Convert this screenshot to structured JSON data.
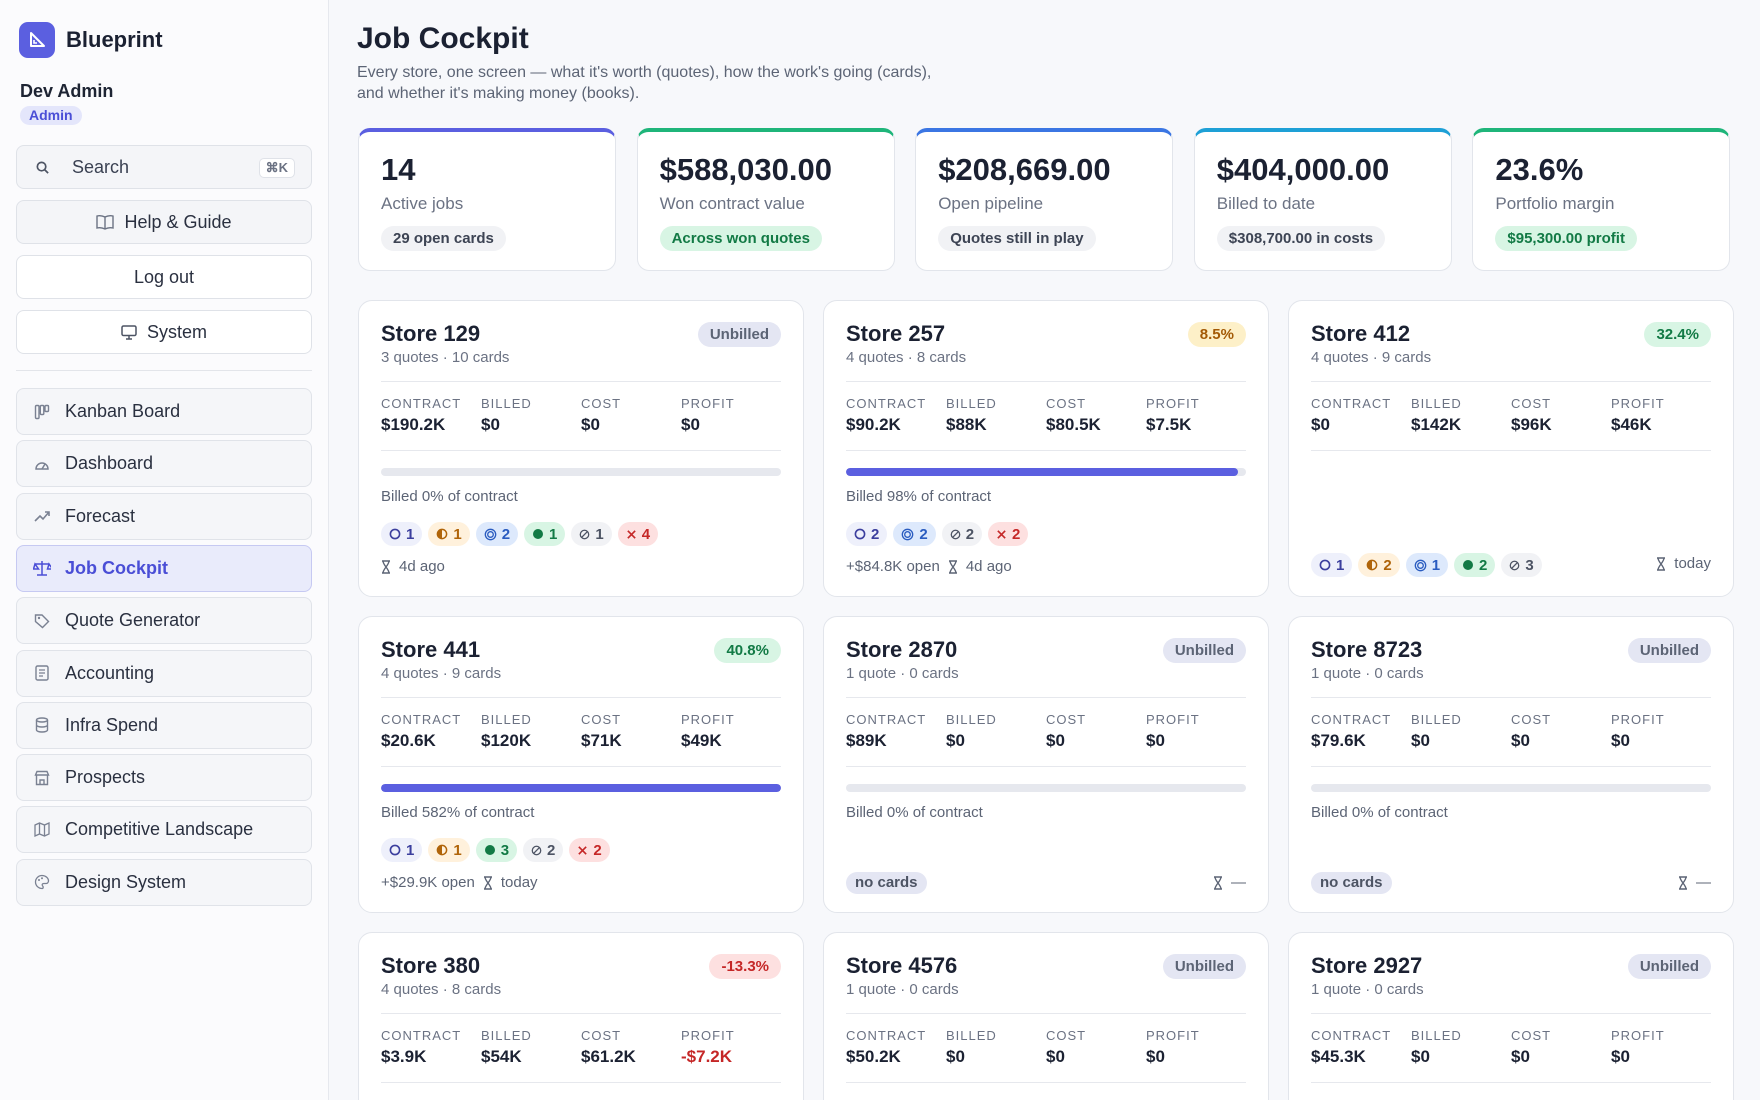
{
  "app": {
    "name": "Blueprint"
  },
  "user": {
    "name": "Dev Admin",
    "role": "Admin"
  },
  "sidebar": {
    "search_label": "Search",
    "search_shortcut": "⌘K",
    "help_label": "Help & Guide",
    "logout_label": "Log out",
    "system_label": "System",
    "nav": [
      {
        "label": "Kanban Board",
        "icon": "kanban-icon"
      },
      {
        "label": "Dashboard",
        "icon": "gauge-icon"
      },
      {
        "label": "Forecast",
        "icon": "trend-icon"
      },
      {
        "label": "Job Cockpit",
        "icon": "scale-icon",
        "active": true
      },
      {
        "label": "Quote Generator",
        "icon": "tag-icon"
      },
      {
        "label": "Accounting",
        "icon": "ledger-icon"
      },
      {
        "label": "Infra Spend",
        "icon": "database-icon"
      },
      {
        "label": "Prospects",
        "icon": "store-icon"
      },
      {
        "label": "Competitive Landscape",
        "icon": "map-icon"
      },
      {
        "label": "Design System",
        "icon": "palette-icon"
      }
    ]
  },
  "header": {
    "title": "Job Cockpit",
    "subtitle": "Every store, one screen — what it's worth (quotes), how the work's going (cards), and whether it's making money (books)."
  },
  "kpis": [
    {
      "value": "14",
      "label": "Active jobs",
      "chip": "29 open cards",
      "accent": "#5b5fe0",
      "chip_style": "neutral"
    },
    {
      "value": "$588,030.00",
      "label": "Won contract value",
      "chip": "Across won quotes",
      "accent": "#1fb57a",
      "chip_style": "green"
    },
    {
      "value": "$208,669.00",
      "label": "Open pipeline",
      "chip": "Quotes still in play",
      "accent": "#3b76e3",
      "chip_style": "neutral"
    },
    {
      "value": "$404,000.00",
      "label": "Billed to date",
      "chip": "$308,700.00 in costs",
      "accent": "#1ea0d6",
      "chip_style": "neutral"
    },
    {
      "value": "23.6%",
      "label": "Portfolio margin",
      "chip": "$95,300.00 profit",
      "accent": "#1fb57a",
      "chip_style": "green"
    }
  ],
  "metric_labels": {
    "contract": "CONTRACT",
    "billed": "BILLED",
    "cost": "COST",
    "profit": "PROFIT"
  },
  "no_cards_label": "no cards",
  "stores": [
    {
      "name": "Store 129",
      "sub": "3 quotes · 10 cards",
      "badge": "Unbilled",
      "badge_style": "neutral",
      "contract": "$190.2K",
      "billed": "$0",
      "cost": "$0",
      "profit": "$0",
      "profit_neg": false,
      "bar": 0,
      "show_bar": true,
      "billed_text": "Billed 0% of contract",
      "chips": [
        {
          "type": "todo",
          "icon": "circle-icon",
          "count": "1"
        },
        {
          "type": "prog",
          "icon": "half-circle-icon",
          "count": "1"
        },
        {
          "type": "rev",
          "icon": "target-icon",
          "count": "2"
        },
        {
          "type": "done",
          "icon": "dot-icon",
          "count": "1"
        },
        {
          "type": "skip",
          "icon": "slash-circle-icon",
          "count": "1"
        },
        {
          "type": "block",
          "icon": "x-icon",
          "count": "4"
        }
      ],
      "open": "",
      "time": "4d ago",
      "time_right": false,
      "no_cards": false
    },
    {
      "name": "Store 257",
      "sub": "4 quotes · 8 cards",
      "badge": "8.5%",
      "badge_style": "warn",
      "contract": "$90.2K",
      "billed": "$88K",
      "cost": "$80.5K",
      "profit": "$7.5K",
      "profit_neg": false,
      "bar": 0.98,
      "show_bar": true,
      "billed_text": "Billed 98% of contract",
      "chips": [
        {
          "type": "todo",
          "icon": "circle-icon",
          "count": "2"
        },
        {
          "type": "rev",
          "icon": "target-icon",
          "count": "2"
        },
        {
          "type": "skip",
          "icon": "slash-circle-icon",
          "count": "2"
        },
        {
          "type": "block",
          "icon": "x-icon",
          "count": "2"
        }
      ],
      "open": "+$84.8K open",
      "time": "4d ago",
      "time_right": false,
      "no_cards": false
    },
    {
      "name": "Store 412",
      "sub": "4 quotes · 9 cards",
      "badge": "32.4%",
      "badge_style": "good",
      "contract": "$0",
      "billed": "$142K",
      "cost": "$96K",
      "profit": "$46K",
      "profit_neg": false,
      "bar": 0,
      "show_bar": false,
      "billed_text": "",
      "chips": [
        {
          "type": "todo",
          "icon": "circle-icon",
          "count": "1"
        },
        {
          "type": "prog",
          "icon": "half-circle-icon",
          "count": "2"
        },
        {
          "type": "rev",
          "icon": "target-icon",
          "count": "1"
        },
        {
          "type": "done",
          "icon": "dot-icon",
          "count": "2"
        },
        {
          "type": "skip",
          "icon": "slash-circle-icon",
          "count": "3"
        }
      ],
      "open": "",
      "time": "today",
      "time_right": true,
      "no_cards": false
    },
    {
      "name": "Store 441",
      "sub": "4 quotes · 9 cards",
      "badge": "40.8%",
      "badge_style": "good",
      "contract": "$20.6K",
      "billed": "$120K",
      "cost": "$71K",
      "profit": "$49K",
      "profit_neg": false,
      "bar": 1,
      "show_bar": true,
      "billed_text": "Billed 582% of contract",
      "chips": [
        {
          "type": "todo",
          "icon": "circle-icon",
          "count": "1"
        },
        {
          "type": "prog",
          "icon": "half-circle-icon",
          "count": "1"
        },
        {
          "type": "done",
          "icon": "dot-icon",
          "count": "3"
        },
        {
          "type": "skip",
          "icon": "slash-circle-icon",
          "count": "2"
        },
        {
          "type": "block",
          "icon": "x-icon",
          "count": "2"
        }
      ],
      "open": "+$29.9K open",
      "time": "today",
      "time_right": false,
      "no_cards": false
    },
    {
      "name": "Store 2870",
      "sub": "1 quote · 0 cards",
      "badge": "Unbilled",
      "badge_style": "neutral",
      "contract": "$89K",
      "billed": "$0",
      "cost": "$0",
      "profit": "$0",
      "profit_neg": false,
      "bar": 0,
      "show_bar": true,
      "billed_text": "Billed 0% of contract",
      "chips": [],
      "open": "",
      "time": "—",
      "time_right": true,
      "no_cards": true
    },
    {
      "name": "Store 8723",
      "sub": "1 quote · 0 cards",
      "badge": "Unbilled",
      "badge_style": "neutral",
      "contract": "$79.6K",
      "billed": "$0",
      "cost": "$0",
      "profit": "$0",
      "profit_neg": false,
      "bar": 0,
      "show_bar": true,
      "billed_text": "Billed 0% of contract",
      "chips": [],
      "open": "",
      "time": "—",
      "time_right": true,
      "no_cards": true
    },
    {
      "name": "Store 380",
      "sub": "4 quotes · 8 cards",
      "badge": "-13.3%",
      "badge_style": "bad",
      "contract": "$3.9K",
      "billed": "$54K",
      "cost": "$61.2K",
      "profit": "-$7.2K",
      "profit_neg": true,
      "bar": 0,
      "show_bar": false,
      "billed_text": "",
      "chips": [],
      "open": "",
      "time": "",
      "time_right": false,
      "no_cards": false
    },
    {
      "name": "Store 4576",
      "sub": "1 quote · 0 cards",
      "badge": "Unbilled",
      "badge_style": "neutral",
      "contract": "$50.2K",
      "billed": "$0",
      "cost": "$0",
      "profit": "$0",
      "profit_neg": false,
      "bar": 0,
      "show_bar": false,
      "billed_text": "",
      "chips": [],
      "open": "",
      "time": "",
      "time_right": false,
      "no_cards": false
    },
    {
      "name": "Store 2927",
      "sub": "1 quote · 0 cards",
      "badge": "Unbilled",
      "badge_style": "neutral",
      "contract": "$45.3K",
      "billed": "$0",
      "cost": "$0",
      "profit": "$0",
      "profit_neg": false,
      "bar": 0,
      "show_bar": false,
      "billed_text": "",
      "chips": [],
      "open": "",
      "time": "",
      "time_right": false,
      "no_cards": false
    }
  ]
}
